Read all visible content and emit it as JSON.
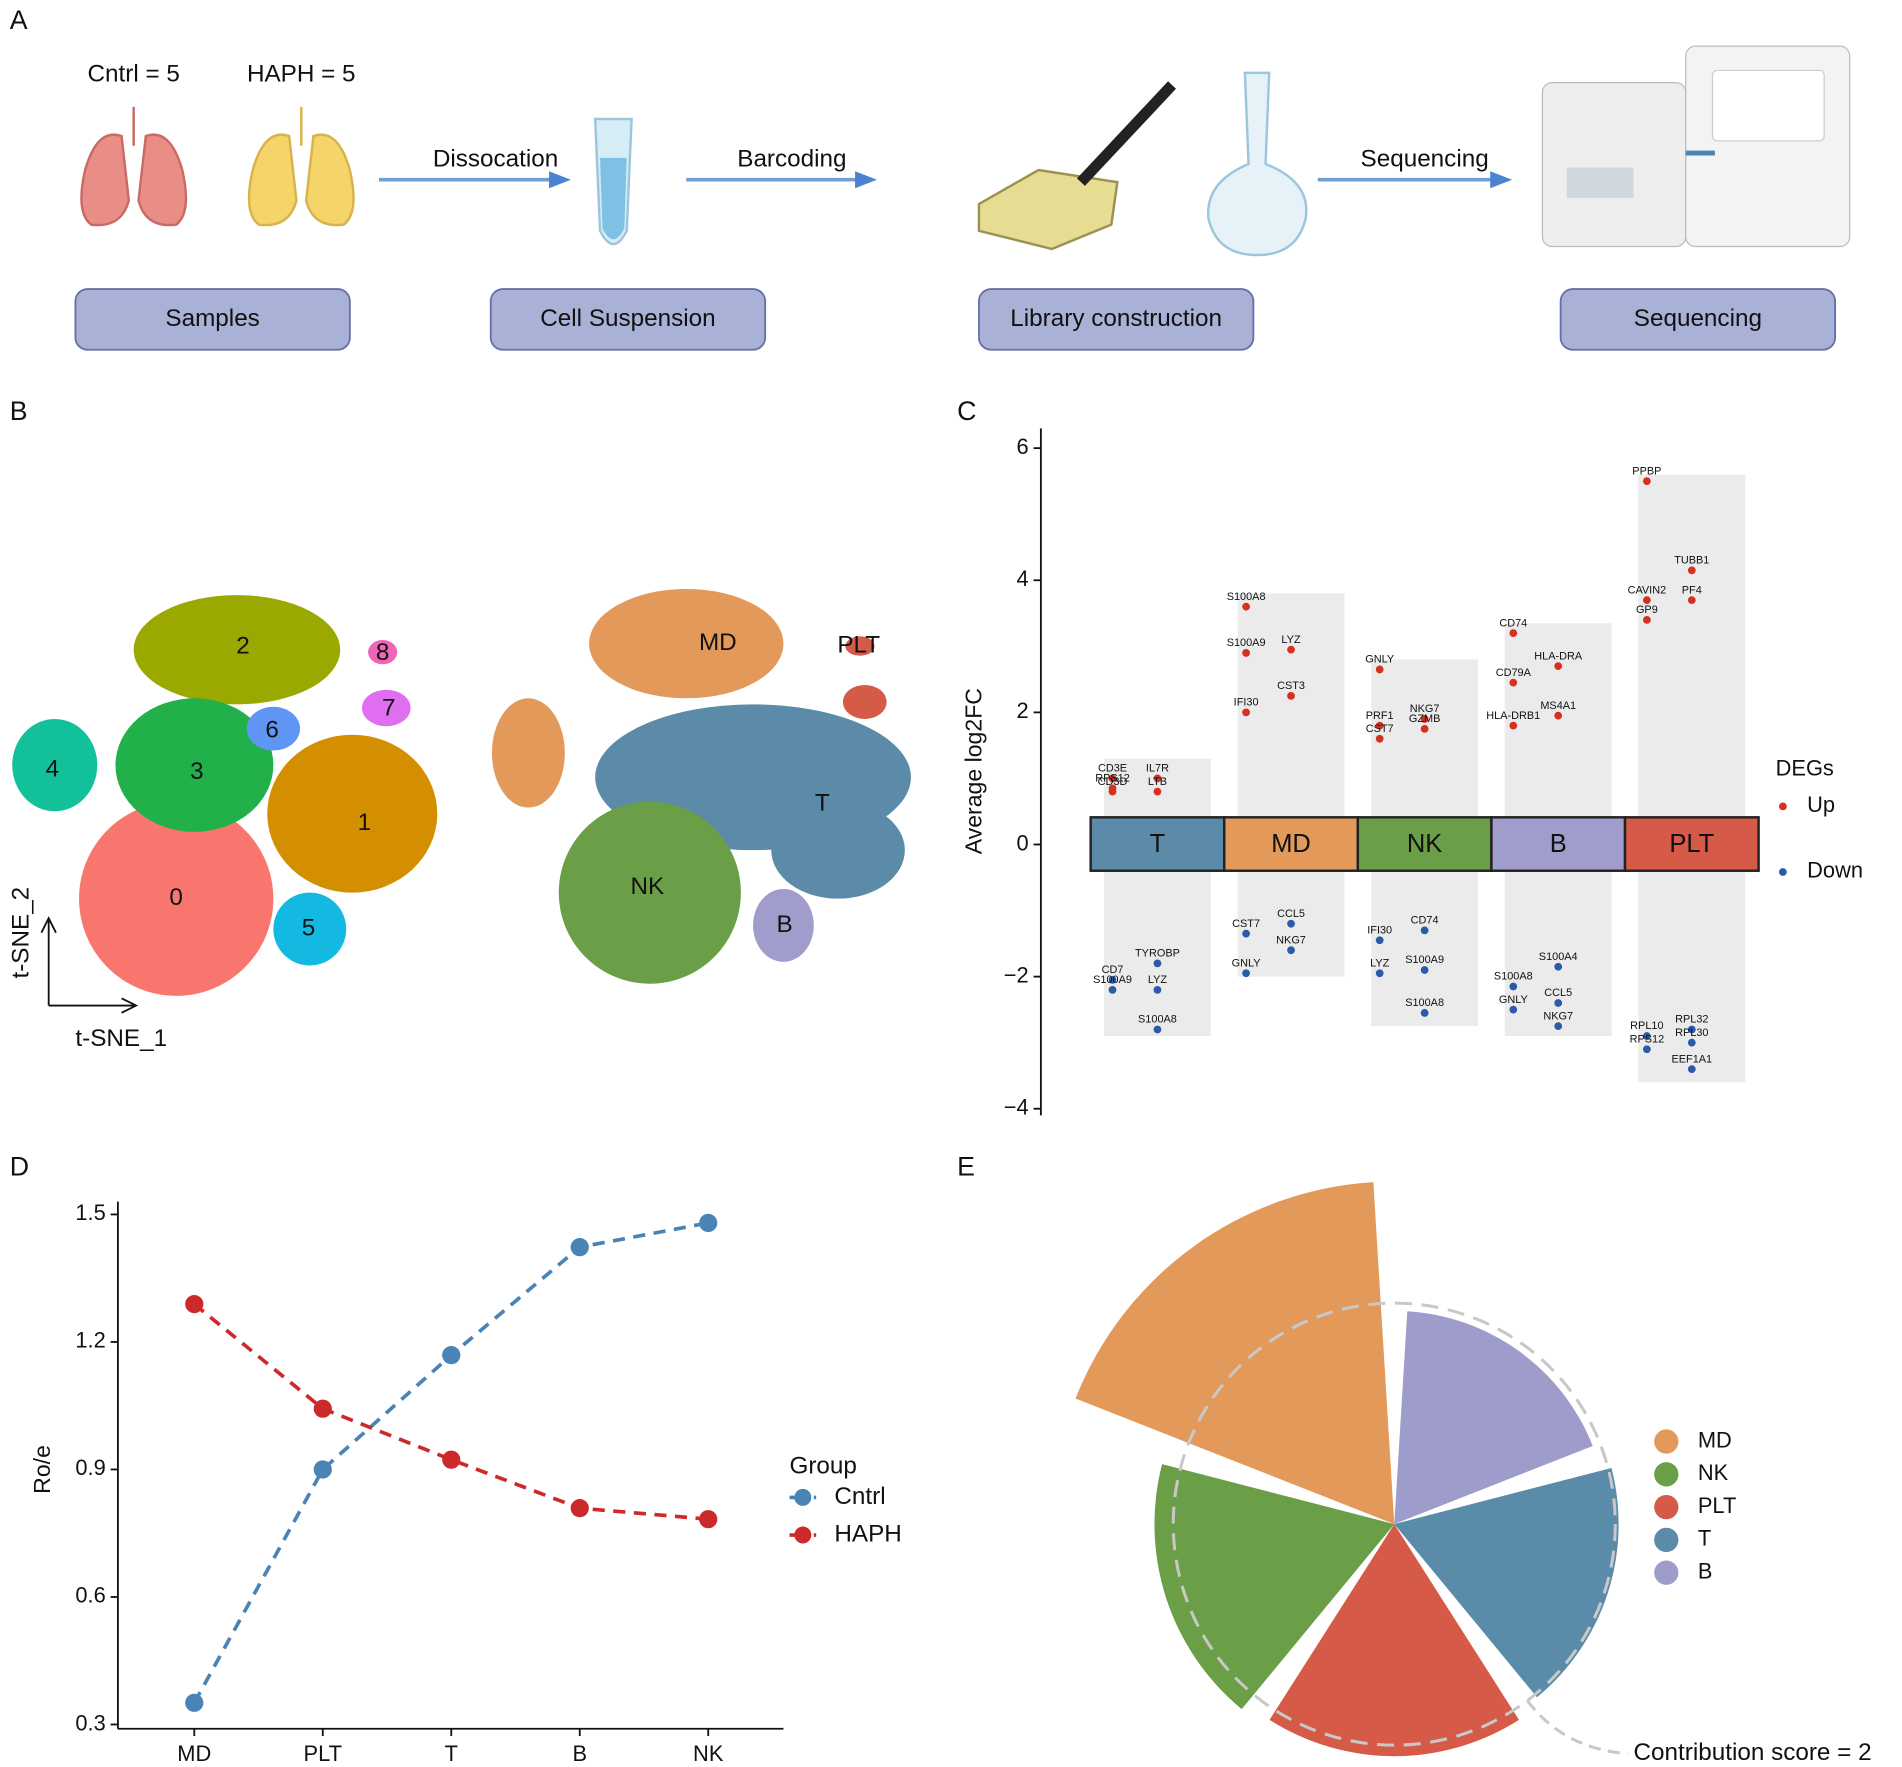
{
  "panel_labels": [
    "A",
    "B",
    "C",
    "D",
    "E"
  ],
  "workflow": {
    "groups": [
      "Cntrl = 5",
      "HAPH = 5"
    ],
    "arrows": [
      "Dissocation",
      "Barcoding",
      "Sequencing"
    ],
    "steps": [
      "Samples",
      "Cell Suspension",
      "Library construction",
      "Sequencing"
    ]
  },
  "chart_data": [
    {
      "type": "tsne",
      "xlabel": "t-SNE_1",
      "ylabel": "t-SNE_2",
      "panels": [
        {
          "clusters": [
            {
              "name": "0",
              "color": "#f8766d"
            },
            {
              "name": "1",
              "color": "#d38f00"
            },
            {
              "name": "2",
              "color": "#9aa800"
            },
            {
              "name": "3",
              "color": "#22b04b"
            },
            {
              "name": "4",
              "color": "#12c09a"
            },
            {
              "name": "5",
              "color": "#13b9e0"
            },
            {
              "name": "6",
              "color": "#5f96f5"
            },
            {
              "name": "7",
              "color": "#df6ef0"
            },
            {
              "name": "8",
              "color": "#f065b8"
            }
          ]
        },
        {
          "clusters": [
            {
              "name": "MD",
              "color": "#e2995a"
            },
            {
              "name": "PLT",
              "color": "#d65a48"
            },
            {
              "name": "T",
              "color": "#5b8ba8"
            },
            {
              "name": "NK",
              "color": "#6a9e47"
            },
            {
              "name": "B",
              "color": "#a09dcc"
            }
          ]
        }
      ]
    },
    {
      "type": "deg",
      "ylabel": "Average log2FC",
      "ylim": [
        -4.1,
        6.3
      ],
      "yticks": [
        {
          "value": -4,
          "label": "−4"
        },
        {
          "value": -2,
          "label": "−2"
        },
        0,
        2,
        4,
        6
      ],
      "legend_title": "DEGs",
      "series": [
        {
          "name": "Up",
          "color": "#d7301f"
        },
        {
          "name": "Down",
          "color": "#2b5aa8"
        }
      ],
      "groups": [
        {
          "name": "T",
          "color": "#5b8ba8",
          "up_max": 1.3,
          "down_min": -2.9,
          "genes": [
            {
              "name": "CD3E",
              "value": 1.0
            },
            {
              "name": "IL7R",
              "value": 1.0
            },
            {
              "name": "RPS12",
              "value": 0.85
            },
            {
              "name": "LTB",
              "value": 0.8
            },
            {
              "name": "CD3D",
              "value": 0.8
            },
            {
              "name": "TYROBP",
              "value": -1.8
            },
            {
              "name": "CD7",
              "value": -2.05
            },
            {
              "name": "LYZ",
              "value": -2.2
            },
            {
              "name": "S100A9",
              "value": -2.2
            },
            {
              "name": "S100A8",
              "value": -2.8
            }
          ]
        },
        {
          "name": "MD",
          "color": "#e2995a",
          "up_max": 3.8,
          "down_min": -2.0,
          "genes": [
            {
              "name": "S100A8",
              "value": 3.6
            },
            {
              "name": "LYZ",
              "value": 2.95
            },
            {
              "name": "S100A9",
              "value": 2.9
            },
            {
              "name": "CST3",
              "value": 2.25
            },
            {
              "name": "IFI30",
              "value": 2.0
            },
            {
              "name": "CCL5",
              "value": -1.2
            },
            {
              "name": "CST7",
              "value": -1.35
            },
            {
              "name": "NKG7",
              "value": -1.6
            },
            {
              "name": "GNLY",
              "value": -1.95
            }
          ]
        },
        {
          "name": "NK",
          "color": "#6a9e47",
          "up_max": 2.8,
          "down_min": -2.75,
          "genes": [
            {
              "name": "GNLY",
              "value": 2.65
            },
            {
              "name": "NKG7",
              "value": 1.9
            },
            {
              "name": "PRF1",
              "value": 1.8
            },
            {
              "name": "GZMB",
              "value": 1.75
            },
            {
              "name": "CST7",
              "value": 1.6
            },
            {
              "name": "CD74",
              "value": -1.3
            },
            {
              "name": "IFI30",
              "value": -1.45
            },
            {
              "name": "S100A9",
              "value": -1.9
            },
            {
              "name": "LYZ",
              "value": -1.95
            },
            {
              "name": "S100A8",
              "value": -2.55
            }
          ]
        },
        {
          "name": "B",
          "color": "#a09dcc",
          "up_max": 3.35,
          "down_min": -2.9,
          "genes": [
            {
              "name": "CD74",
              "value": 3.2
            },
            {
              "name": "HLA-DRA",
              "value": 2.7
            },
            {
              "name": "CD79A",
              "value": 2.45
            },
            {
              "name": "MS4A1",
              "value": 1.95
            },
            {
              "name": "HLA-DRB1",
              "value": 1.8
            },
            {
              "name": "S100A4",
              "value": -1.85
            },
            {
              "name": "S100A8",
              "value": -2.15
            },
            {
              "name": "CCL5",
              "value": -2.4
            },
            {
              "name": "GNLY",
              "value": -2.5
            },
            {
              "name": "NKG7",
              "value": -2.75
            }
          ]
        },
        {
          "name": "PLT",
          "color": "#d65a48",
          "up_max": 5.6,
          "down_min": -3.6,
          "genes": [
            {
              "name": "PPBP",
              "value": 5.5
            },
            {
              "name": "TUBB1",
              "value": 4.15
            },
            {
              "name": "CAVIN2",
              "value": 3.7
            },
            {
              "name": "PF4",
              "value": 3.7
            },
            {
              "name": "GP9",
              "value": 3.4
            },
            {
              "name": "RPL32",
              "value": -2.8
            },
            {
              "name": "RPL10",
              "value": -2.9
            },
            {
              "name": "RPL30",
              "value": -3.0
            },
            {
              "name": "RPS12",
              "value": -3.1
            },
            {
              "name": "EEF1A1",
              "value": -3.4
            }
          ]
        }
      ]
    },
    {
      "type": "line",
      "ylabel": "Ro/e",
      "categories": [
        "MD",
        "PLT",
        "T",
        "B",
        "NK"
      ],
      "ylim": [
        0.29,
        1.53
      ],
      "yticks": [
        0.3,
        0.6,
        0.9,
        1.2,
        1.5
      ],
      "legend_title": "Group",
      "series": [
        {
          "name": "Cntrl",
          "color": "#4a83b5",
          "values": [
            0.351,
            0.9,
            1.169,
            1.423,
            1.48
          ]
        },
        {
          "name": "HAPH",
          "color": "#cc2a2a",
          "values": [
            1.289,
            1.043,
            0.923,
            0.809,
            0.783
          ]
        }
      ]
    },
    {
      "type": "rose",
      "categories": [
        "MD",
        "B",
        "T",
        "PLT",
        "NK"
      ],
      "values": [
        3.1,
        1.93,
        2.03,
        2.1,
        2.17
      ],
      "colors": [
        "#e2995a",
        "#9e9ccb",
        "#5a8ba8",
        "#d65a48",
        "#6a9e47"
      ],
      "legend": [
        "MD",
        "NK",
        "PLT",
        "T",
        "B"
      ],
      "reference": 2,
      "reference_label": "Contribution score = 2"
    }
  ]
}
